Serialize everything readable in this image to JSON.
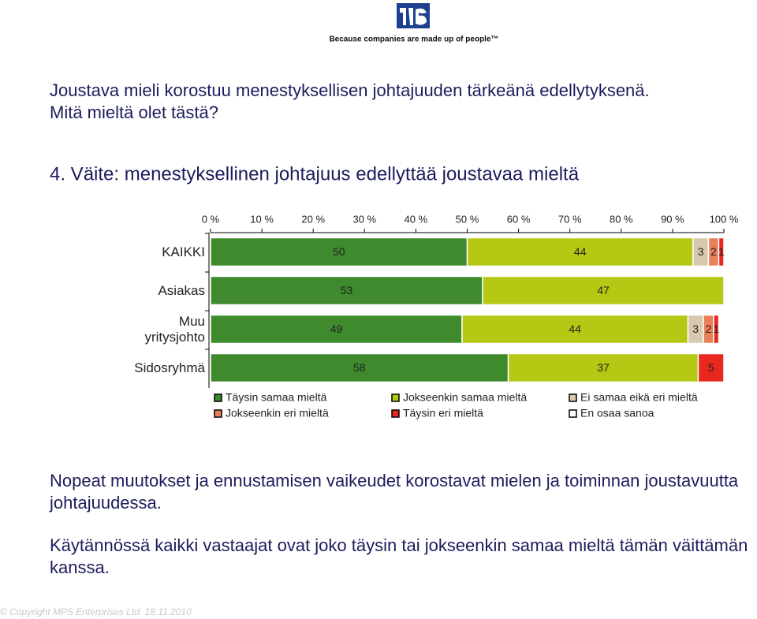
{
  "header": {
    "tagline": "Because companies are made up of people™"
  },
  "question": [
    "Joustava mieli korostuu menestyksellisen johtajuuden tärkeänä edellytyksenä.",
    "Mitä mieltä olet tästä?"
  ],
  "chart_data": {
    "type": "stacked-bar-horizontal",
    "title": "4. Väite: menestyksellinen johtajuus edellyttää joustavaa mieltä",
    "categories": [
      "KAIKKI",
      "Asiakas",
      "Muu yritysjohto",
      "Sidosryhmä"
    ],
    "series": [
      {
        "name": "Täysin samaa mieltä",
        "color": "#3e8a2c",
        "values": [
          50,
          53,
          49,
          58
        ]
      },
      {
        "name": "Jokseenkin samaa mieltä",
        "color": "#b4c814",
        "values": [
          44,
          47,
          44,
          37
        ]
      },
      {
        "name": "Ei samaa eikä eri mieltä",
        "color": "#d8c9ae",
        "values": [
          3,
          null,
          3,
          null
        ]
      },
      {
        "name": "Jokseenkin eri mieltä",
        "color": "#e8805a",
        "values": [
          2,
          null,
          2,
          null
        ]
      },
      {
        "name": "Täysin eri mieltä",
        "color": "#e8281e",
        "values": [
          1,
          null,
          1,
          5
        ]
      },
      {
        "name": "En osaa sanoa",
        "color": "#ffffff",
        "values": [
          null,
          null,
          null,
          null
        ]
      }
    ],
    "xlim": [
      0,
      100
    ],
    "xticks": [
      {
        "value": 0,
        "label": "0 %"
      },
      {
        "value": 10,
        "label": "10 %"
      },
      {
        "value": 20,
        "label": "20 %"
      },
      {
        "value": 30,
        "label": "30 %"
      },
      {
        "value": 40,
        "label": "40 %"
      },
      {
        "value": 50,
        "label": "50 %"
      },
      {
        "value": 60,
        "label": "60 %"
      },
      {
        "value": 70,
        "label": "70 %"
      },
      {
        "value": 80,
        "label": "80 %"
      },
      {
        "value": 90,
        "label": "90 %"
      },
      {
        "value": 100,
        "label": "100 %"
      }
    ]
  },
  "notes": [
    "Nopeat muutokset ja ennustamisen vaikeudet korostavat mielen ja toiminnan joustavuutta johtajuudessa.",
    "Käytännössä kaikki vastaajat ovat joko täysin tai jokseenkin samaa mieltä tämän väittämän kanssa."
  ],
  "footer": "© Copyright MPS Enterprises Ltd. 18.11.2010"
}
